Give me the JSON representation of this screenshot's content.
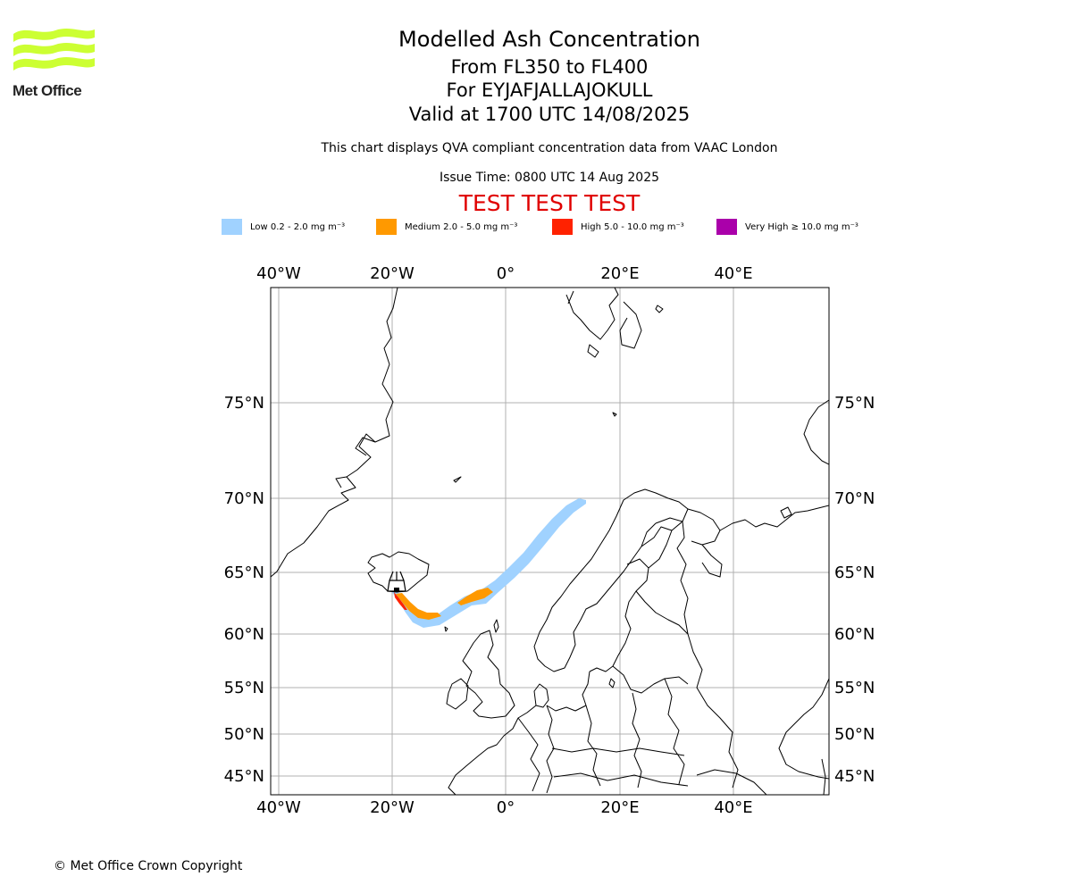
{
  "logo": {
    "text": "Met Office",
    "color": "#ccff33"
  },
  "header": {
    "title": "Modelled Ash Concentration",
    "levels": "From FL350 to FL400",
    "volcano": "For EYJAFJALLAJOKULL",
    "valid": "Valid at 1700 UTC 14/08/2025",
    "description": "This chart displays QVA compliant concentration data from VAAC London",
    "issue_time": "Issue Time: 0800 UTC 14 Aug 2025",
    "test_banner": "TEST TEST TEST"
  },
  "legend": [
    {
      "label": "Low 0.2 - 2.0 mg m⁻³",
      "color": "#a0d2ff"
    },
    {
      "label": "Medium 2.0 - 5.0 mg m⁻³",
      "color": "#ff9900"
    },
    {
      "label": "High 5.0 - 10.0 mg m⁻³",
      "color": "#ff2200"
    },
    {
      "label": "Very High ≥ 10.0 mg m⁻³",
      "color": "#aa00aa"
    }
  ],
  "map": {
    "lon_labels": [
      "40°W",
      "20°W",
      "0°",
      "20°E",
      "40°E"
    ],
    "lat_labels": [
      "75°N",
      "70°N",
      "65°N",
      "60°N",
      "55°N",
      "50°N",
      "45°N"
    ],
    "projection": "polar-stereographic",
    "coastline_color": "#000000",
    "gridline_color": "#b0b0b0",
    "volcano_marker": "volcano-triangle-icon"
  },
  "footer": {
    "copyright": "© Met Office Crown Copyright"
  }
}
